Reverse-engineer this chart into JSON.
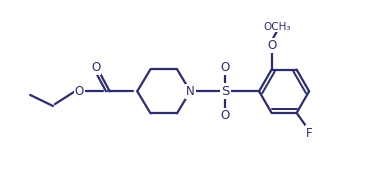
{
  "bg_color": "#ffffff",
  "line_color": "#2d2d6e",
  "line_width": 1.6,
  "font_size": 8.5,
  "figsize": [
    3.68,
    1.84
  ],
  "dpi": 100,
  "xlim": [
    0,
    10
  ],
  "ylim": [
    0,
    5
  ]
}
